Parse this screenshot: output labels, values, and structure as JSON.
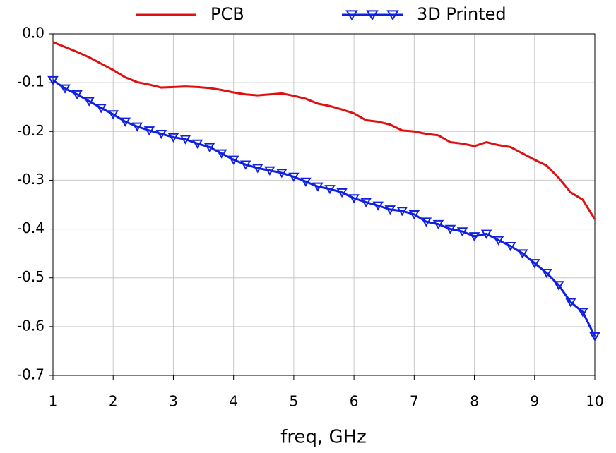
{
  "chart_data": {
    "type": "line",
    "x_label": "freq, GHz",
    "x": [
      1,
      1.2,
      1.4,
      1.6,
      1.8,
      2,
      2.2,
      2.4,
      2.6,
      2.8,
      3,
      3.2,
      3.4,
      3.6,
      3.8,
      4,
      4.2,
      4.4,
      4.6,
      4.8,
      5,
      5.2,
      5.4,
      5.6,
      5.8,
      6,
      6.2,
      6.4,
      6.6,
      6.8,
      7,
      7.2,
      7.4,
      7.6,
      7.8,
      8,
      8.2,
      8.4,
      8.6,
      8.8,
      9,
      9.2,
      9.4,
      9.6,
      9.8,
      10
    ],
    "series": [
      {
        "name": "PCB",
        "color": "#e01010",
        "marker": "none",
        "values": [
          -0.017,
          -0.027,
          -0.037,
          -0.048,
          -0.061,
          -0.074,
          -0.089,
          -0.099,
          -0.104,
          -0.11,
          -0.109,
          -0.108,
          -0.109,
          -0.111,
          -0.115,
          -0.12,
          -0.124,
          -0.126,
          -0.124,
          -0.122,
          -0.127,
          -0.133,
          -0.143,
          -0.148,
          -0.155,
          -0.163,
          -0.177,
          -0.18,
          -0.186,
          -0.198,
          -0.2,
          -0.205,
          -0.208,
          -0.222,
          -0.225,
          -0.23,
          -0.222,
          -0.228,
          -0.232,
          -0.245,
          -0.258,
          -0.27,
          -0.295,
          -0.325,
          -0.34,
          -0.38
        ]
      },
      {
        "name": "3D Printed",
        "color": "#1020e0",
        "marker": "triangle-down",
        "values": [
          -0.095,
          -0.112,
          -0.124,
          -0.138,
          -0.152,
          -0.165,
          -0.18,
          -0.19,
          -0.198,
          -0.205,
          -0.212,
          -0.216,
          -0.225,
          -0.232,
          -0.245,
          -0.258,
          -0.268,
          -0.275,
          -0.28,
          -0.285,
          -0.293,
          -0.303,
          -0.313,
          -0.318,
          -0.325,
          -0.337,
          -0.345,
          -0.352,
          -0.36,
          -0.363,
          -0.37,
          -0.385,
          -0.39,
          -0.4,
          -0.405,
          -0.415,
          -0.41,
          -0.423,
          -0.435,
          -0.45,
          -0.47,
          -0.49,
          -0.515,
          -0.55,
          -0.57,
          -0.62
        ]
      }
    ],
    "xlim": [
      1,
      10
    ],
    "xticks": [
      1,
      2,
      3,
      4,
      5,
      6,
      7,
      8,
      9,
      10
    ],
    "ylim": [
      -0.7,
      0
    ],
    "yticks": [
      {
        "value": 0,
        "label": "0.0"
      },
      -0.1,
      -0.2,
      -0.3,
      -0.4,
      -0.5,
      -0.6,
      -0.7
    ],
    "grid": true,
    "legend": "top"
  }
}
